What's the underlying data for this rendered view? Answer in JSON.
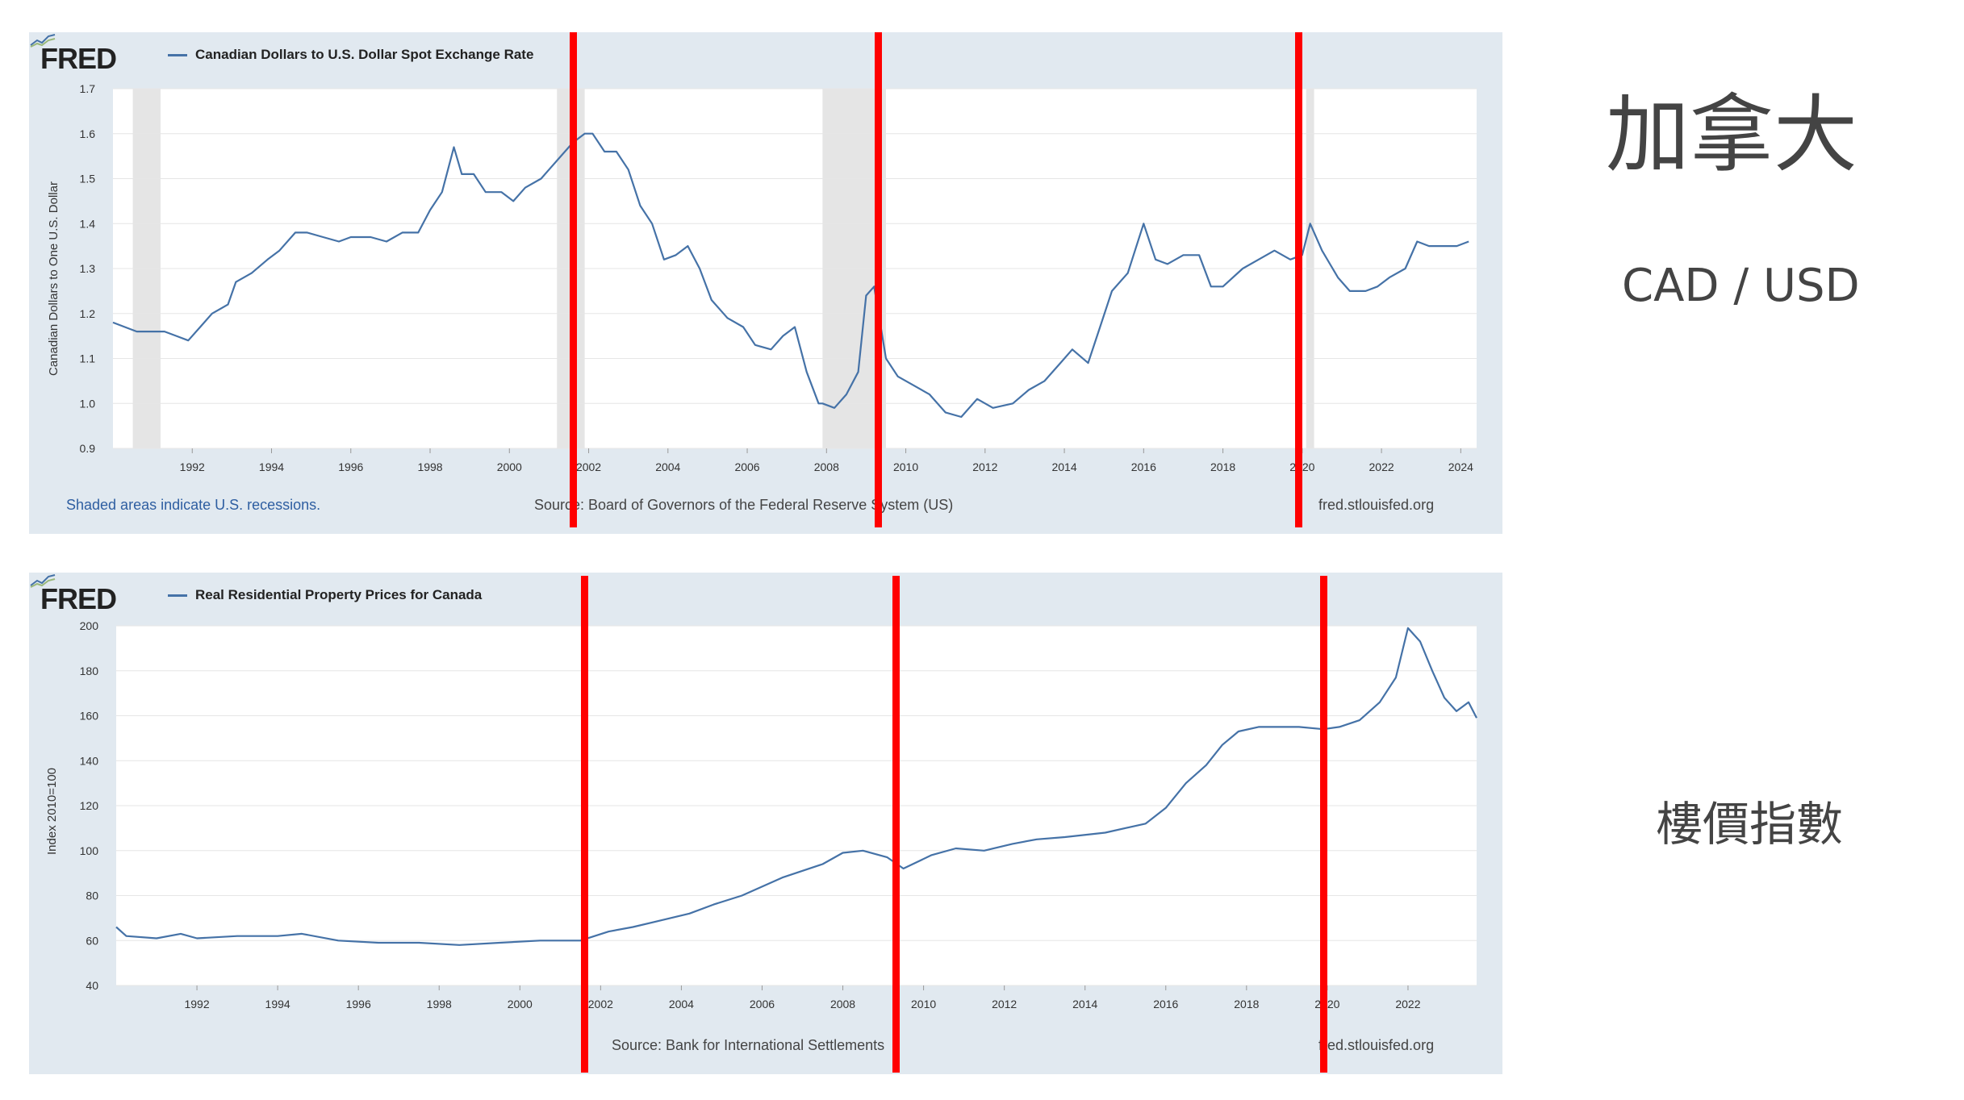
{
  "side": {
    "title": "加拿大",
    "subtitle": "CAD / USD",
    "index_label": "樓價指數"
  },
  "colors": {
    "line": "#4572a7",
    "panel_bg": "#e1e9f0",
    "recession": "#e5e5e5",
    "marker": "#ff0000"
  },
  "markers": {
    "years": [
      2001.6,
      2009.3,
      2019.9
    ]
  },
  "chart1": {
    "logo": "FRED",
    "ylabel": "Canadian Dollars to One U.S. Dollar",
    "footer_left": "Shaded areas indicate U.S. recessions.",
    "footer_source": "Source: Board of Governors of the Federal Reserve System (US)",
    "footer_right": "fred.stlouisfed.org"
  },
  "chart2": {
    "logo": "FRED",
    "ylabel": "Index 2010=100",
    "footer_source": "Source: Bank for International Settlements",
    "footer_right": "fred.stlouisfed.org"
  },
  "chart_data": [
    {
      "type": "line",
      "title": "Canadian Dollars to U.S. Dollar Spot Exchange Rate",
      "xlabel": "",
      "ylabel": "Canadian Dollars to One U.S. Dollar",
      "xlim": [
        1990,
        2024.4
      ],
      "ylim": [
        0.9,
        1.7
      ],
      "xticks": [
        "1992",
        "1994",
        "1996",
        "1998",
        "2000",
        "2002",
        "2004",
        "2006",
        "2008",
        "2010",
        "2012",
        "2014",
        "2016",
        "2018",
        "2020",
        "2022",
        "2024"
      ],
      "yticks": [
        "0.9",
        "1.0",
        "1.1",
        "1.2",
        "1.3",
        "1.4",
        "1.5",
        "1.6",
        "1.7"
      ],
      "recessions": [
        [
          1990.5,
          1991.2
        ],
        [
          2001.2,
          2001.9
        ],
        [
          2007.9,
          2009.5
        ],
        [
          2020.1,
          2020.3
        ]
      ],
      "series": [
        {
          "name": "Canadian Dollars to U.S. Dollar Spot Exchange Rate",
          "x": [
            1990.0,
            1990.3,
            1990.6,
            1991.0,
            1991.3,
            1991.6,
            1991.9,
            1992.2,
            1992.5,
            1992.9,
            1993.1,
            1993.5,
            1993.9,
            1994.2,
            1994.6,
            1994.9,
            1995.3,
            1995.7,
            1996.0,
            1996.5,
            1996.9,
            1997.3,
            1997.7,
            1998.0,
            1998.3,
            1998.6,
            1998.8,
            1999.1,
            1999.4,
            1999.8,
            2000.1,
            2000.4,
            2000.8,
            2001.0,
            2001.3,
            2001.6,
            2001.9,
            2002.1,
            2002.4,
            2002.7,
            2003.0,
            2003.3,
            2003.6,
            2003.9,
            2004.2,
            2004.5,
            2004.8,
            2005.1,
            2005.5,
            2005.9,
            2006.2,
            2006.6,
            2006.9,
            2007.2,
            2007.5,
            2007.8,
            2007.9,
            2008.2,
            2008.5,
            2008.8,
            2009.0,
            2009.2,
            2009.5,
            2009.8,
            2010.2,
            2010.6,
            2011.0,
            2011.4,
            2011.8,
            2012.2,
            2012.7,
            2013.1,
            2013.5,
            2013.9,
            2014.2,
            2014.6,
            2014.9,
            2015.2,
            2015.6,
            2016.0,
            2016.3,
            2016.6,
            2017.0,
            2017.4,
            2017.7,
            2018.0,
            2018.5,
            2018.9,
            2019.3,
            2019.7,
            2020.0,
            2020.2,
            2020.5,
            2020.9,
            2021.2,
            2021.6,
            2021.9,
            2022.2,
            2022.6,
            2022.9,
            2023.2,
            2023.6,
            2023.9,
            2024.2
          ],
          "values": [
            1.18,
            1.17,
            1.16,
            1.16,
            1.16,
            1.15,
            1.14,
            1.17,
            1.2,
            1.22,
            1.27,
            1.29,
            1.32,
            1.34,
            1.38,
            1.38,
            1.37,
            1.36,
            1.37,
            1.37,
            1.36,
            1.38,
            1.38,
            1.43,
            1.47,
            1.57,
            1.51,
            1.51,
            1.47,
            1.47,
            1.45,
            1.48,
            1.5,
            1.52,
            1.55,
            1.58,
            1.6,
            1.6,
            1.56,
            1.56,
            1.52,
            1.44,
            1.4,
            1.32,
            1.33,
            1.35,
            1.3,
            1.23,
            1.19,
            1.17,
            1.13,
            1.12,
            1.15,
            1.17,
            1.07,
            1.0,
            1.0,
            0.99,
            1.02,
            1.07,
            1.24,
            1.26,
            1.1,
            1.06,
            1.04,
            1.02,
            0.98,
            0.97,
            1.01,
            0.99,
            1.0,
            1.03,
            1.05,
            1.09,
            1.12,
            1.09,
            1.17,
            1.25,
            1.29,
            1.4,
            1.32,
            1.31,
            1.33,
            1.33,
            1.26,
            1.26,
            1.3,
            1.32,
            1.34,
            1.32,
            1.33,
            1.4,
            1.34,
            1.28,
            1.25,
            1.25,
            1.26,
            1.28,
            1.3,
            1.36,
            1.35,
            1.35,
            1.35,
            1.36
          ]
        }
      ]
    },
    {
      "type": "line",
      "title": "Real Residential Property Prices for Canada",
      "xlabel": "",
      "ylabel": "Index 2010=100",
      "xlim": [
        1990,
        2023.7
      ],
      "ylim": [
        40,
        200
      ],
      "xticks": [
        "1992",
        "1994",
        "1996",
        "1998",
        "2000",
        "2002",
        "2004",
        "2006",
        "2008",
        "2010",
        "2012",
        "2014",
        "2016",
        "2018",
        "2020",
        "2022"
      ],
      "yticks": [
        "40",
        "60",
        "80",
        "100",
        "120",
        "140",
        "160",
        "180",
        "200"
      ],
      "series": [
        {
          "name": "Real Residential Property Prices for Canada",
          "x": [
            1990.0,
            1990.25,
            1991.0,
            1991.6,
            1992.0,
            1993.0,
            1994.0,
            1994.6,
            1995.5,
            1996.5,
            1997.5,
            1998.5,
            1999.5,
            2000.5,
            2001.5,
            2002.2,
            2002.8,
            2003.5,
            2004.2,
            2004.8,
            2005.5,
            2006.5,
            2007.5,
            2008.0,
            2008.5,
            2009.1,
            2009.5,
            2010.2,
            2010.8,
            2011.5,
            2012.2,
            2012.8,
            2013.5,
            2014.5,
            2015.5,
            2016.0,
            2016.5,
            2017.0,
            2017.4,
            2017.8,
            2018.3,
            2018.8,
            2019.3,
            2019.9,
            2020.3,
            2020.8,
            2021.3,
            2021.7,
            2022.0,
            2022.3,
            2022.6,
            2022.9,
            2023.2,
            2023.5,
            2023.7
          ],
          "values": [
            66,
            62,
            61,
            63,
            61,
            62,
            62,
            63,
            60,
            59,
            59,
            58,
            59,
            60,
            60,
            64,
            66,
            69,
            72,
            76,
            80,
            88,
            94,
            99,
            100,
            97,
            92,
            98,
            101,
            100,
            103,
            105,
            106,
            108,
            112,
            119,
            130,
            138,
            147,
            153,
            155,
            155,
            155,
            154,
            155,
            158,
            166,
            177,
            199,
            193,
            180,
            168,
            162,
            166,
            159
          ]
        }
      ]
    }
  ]
}
